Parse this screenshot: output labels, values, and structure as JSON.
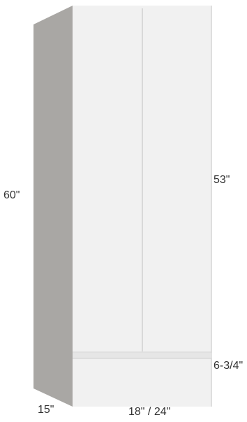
{
  "labels": {
    "height": "60\"",
    "door_height": "53\"",
    "drawer_height": "6-3/4\"",
    "depth": "15\"",
    "width": "18\" / 24\""
  }
}
